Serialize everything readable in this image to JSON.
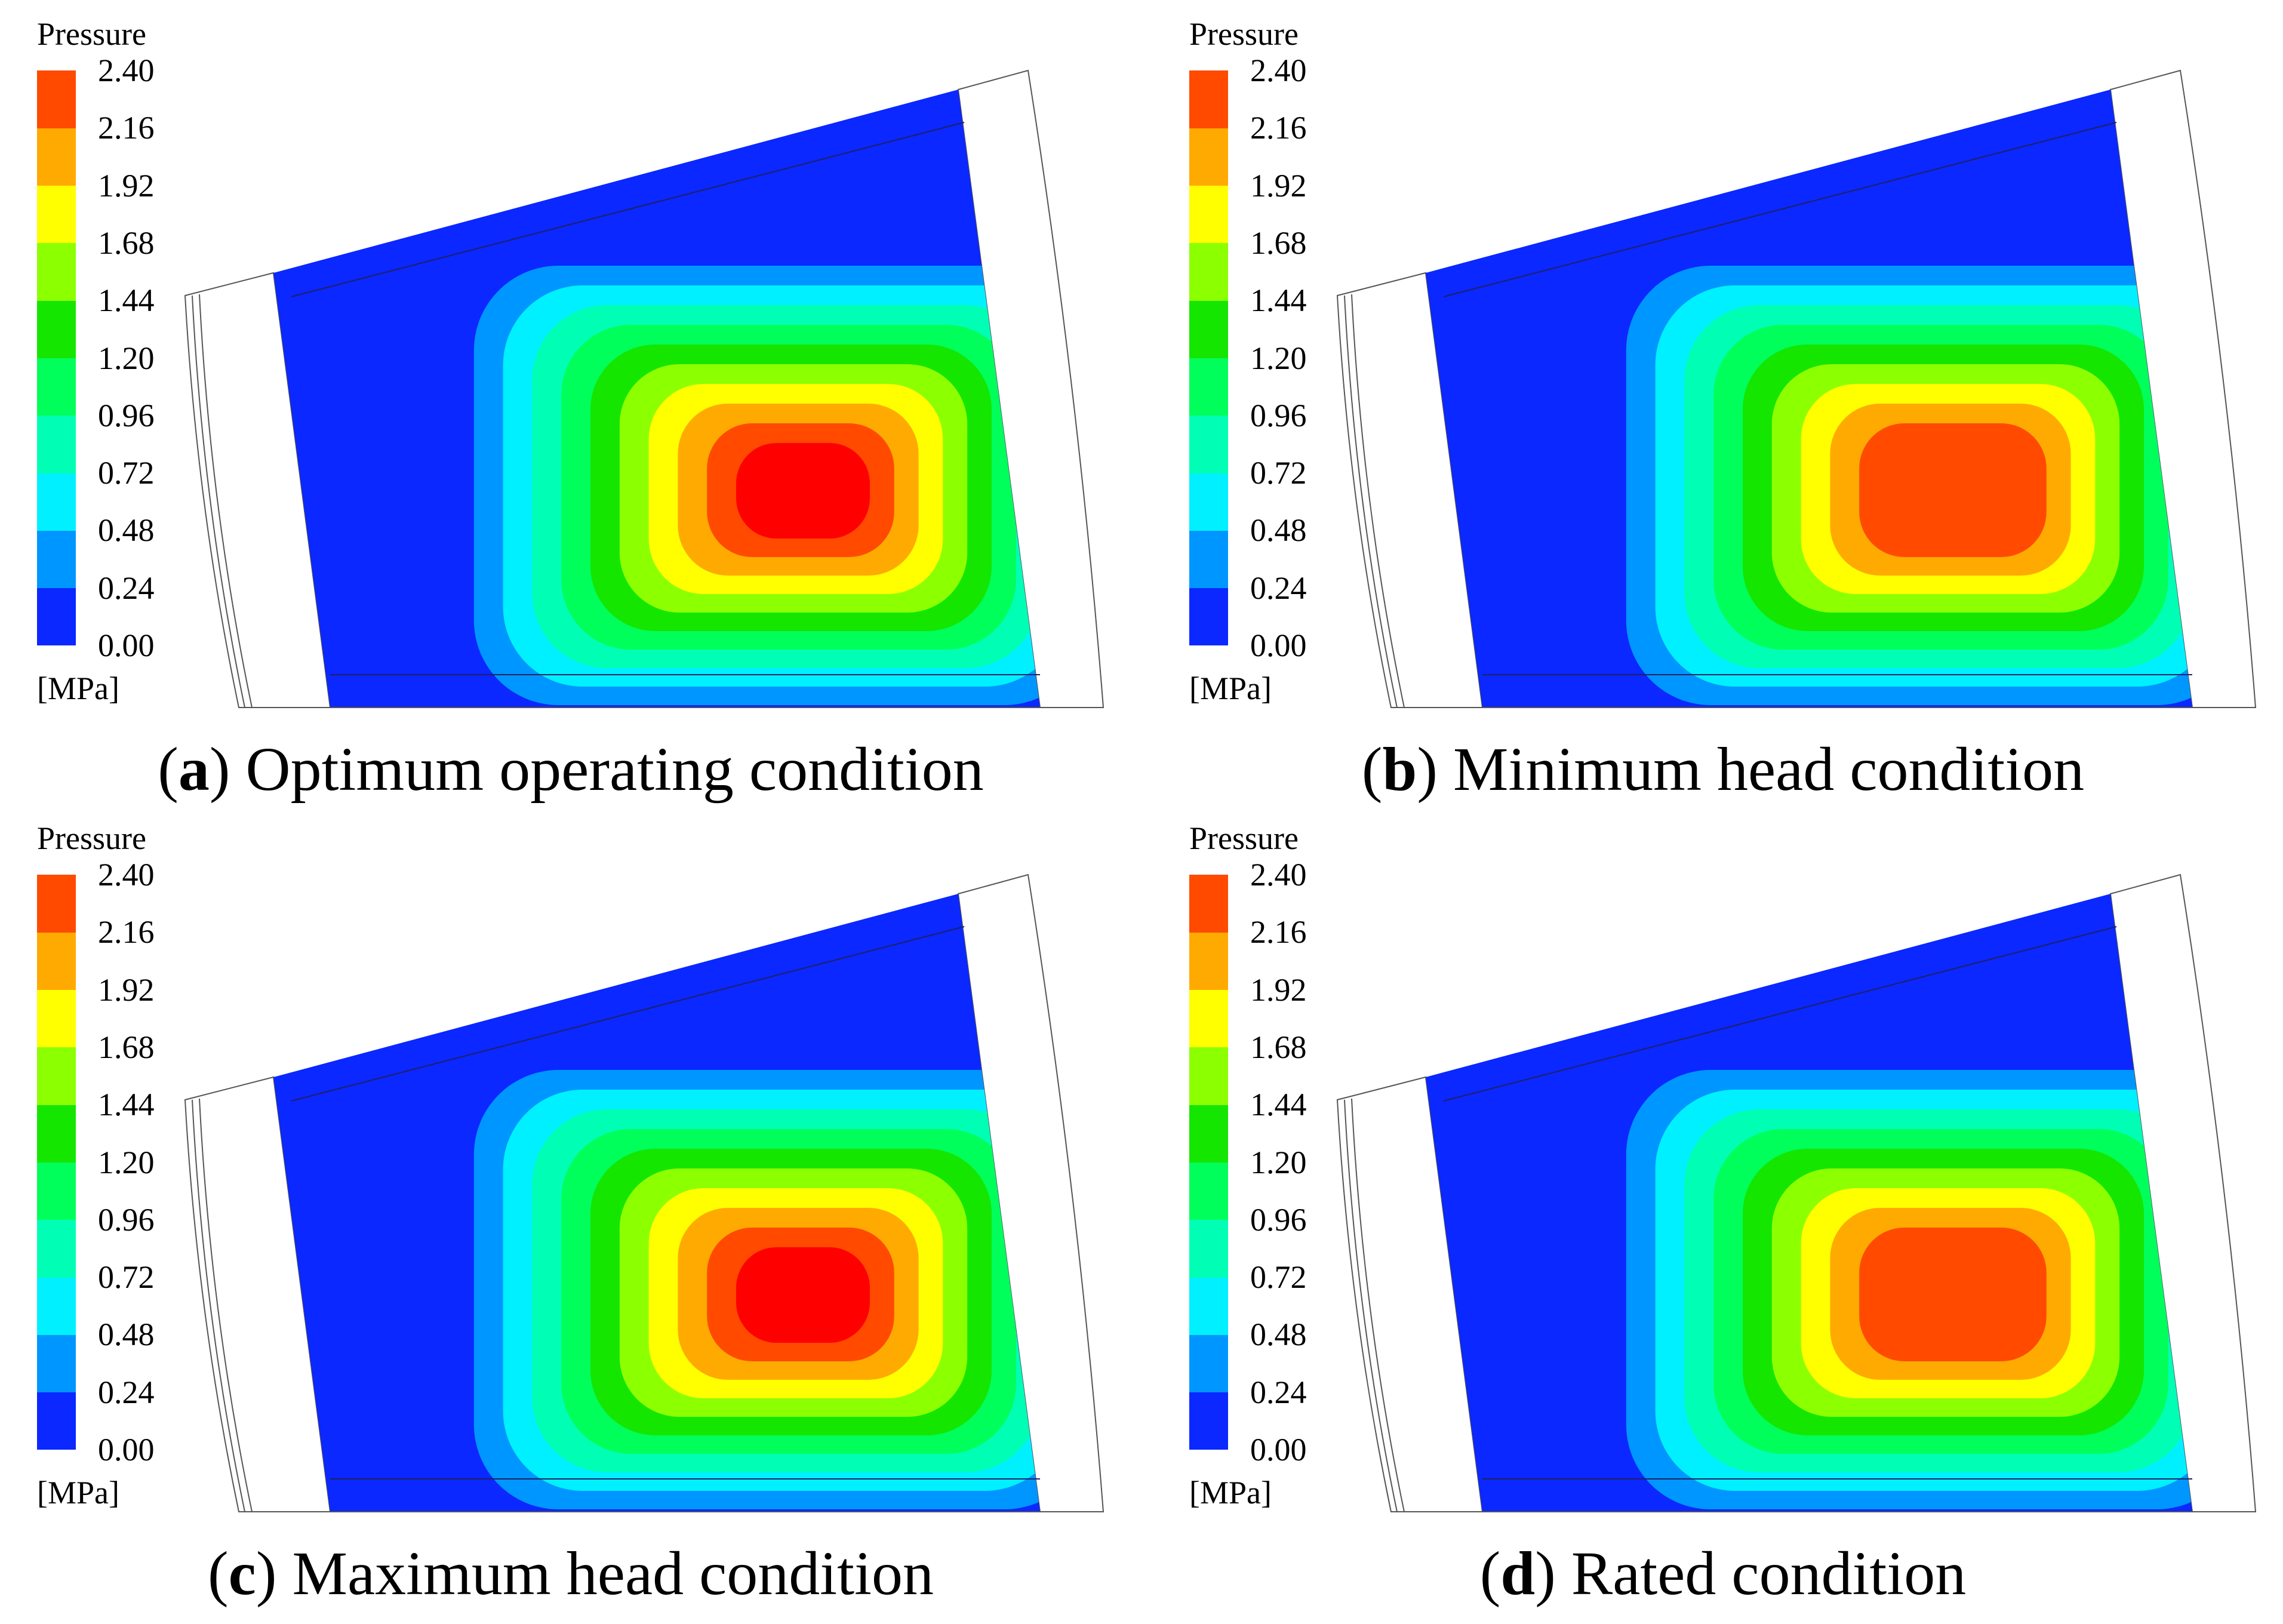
{
  "legend": {
    "title": "Pressure",
    "unit": "[MPa]",
    "ticks": [
      "0.00",
      "0.24",
      "0.48",
      "0.72",
      "0.96",
      "1.20",
      "1.44",
      "1.68",
      "1.92",
      "2.16",
      "2.40"
    ],
    "band_colors": [
      "#0a28ff",
      "#0096ff",
      "#00f0ff",
      "#00ffb4",
      "#00ff5a",
      "#14e600",
      "#8cff00",
      "#ffff00",
      "#ffaa00",
      "#ff4a00"
    ]
  },
  "colors": {
    "peak": "#ff0000",
    "outline": "#555555"
  },
  "panels": [
    {
      "label": "a",
      "caption": "Optimum operating condition",
      "bands": 11
    },
    {
      "label": "b",
      "caption": "Minimum head condition",
      "bands": 10
    },
    {
      "label": "c",
      "caption": "Maximum head condition",
      "bands": 11
    },
    {
      "label": "d",
      "caption": "Rated condition",
      "bands": 10
    }
  ]
}
